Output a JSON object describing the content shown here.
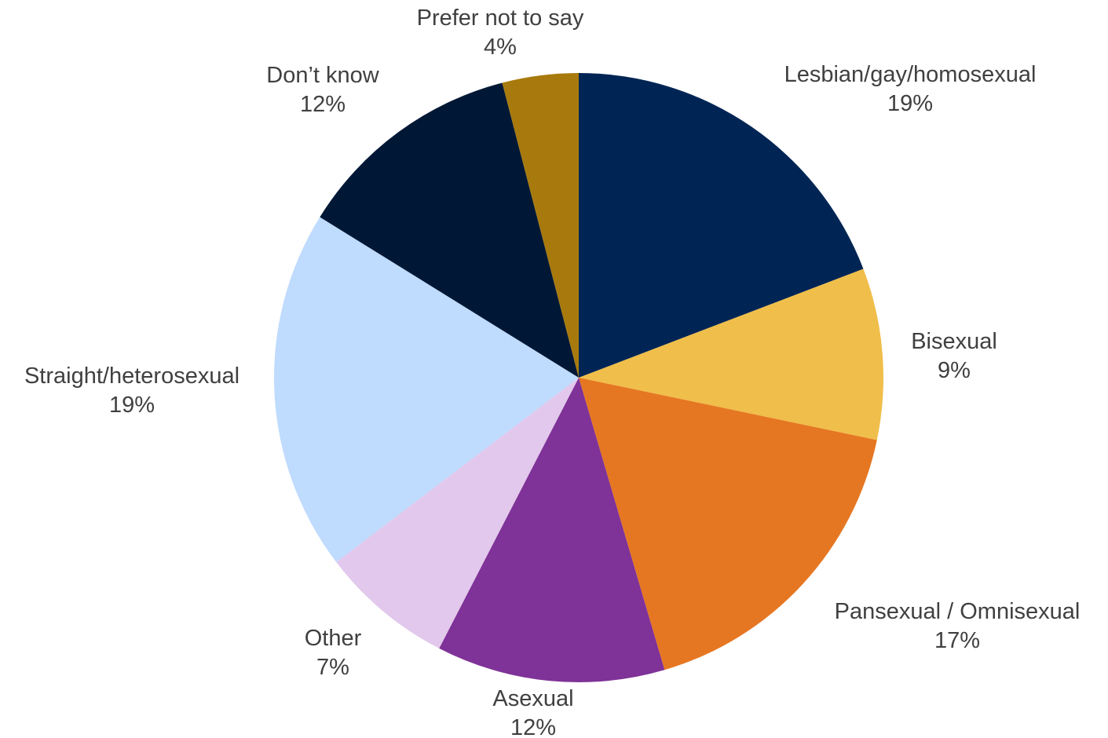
{
  "chart_data": {
    "type": "pie",
    "title": "",
    "start_angle_deg": 0,
    "direction": "clockwise",
    "slices": [
      {
        "label": "Lesbian/gay/homosexual",
        "value": 19,
        "display": "19%",
        "color": "#002554"
      },
      {
        "label": "Bisexual",
        "value": 9,
        "display": "9%",
        "color": "#F0BE4A"
      },
      {
        "label": "Pansexual / Omnisexual",
        "value": 17,
        "display": "17%",
        "color": "#E67722"
      },
      {
        "label": "Asexual",
        "value": 12,
        "display": "12%",
        "color": "#7F3297"
      },
      {
        "label": "Other",
        "value": 7,
        "display": "7%",
        "color": "#E2C8EC"
      },
      {
        "label": "Straight/heterosexual",
        "value": 19,
        "display": "19%",
        "color": "#BFDBFE"
      },
      {
        "label": "Don’t know",
        "value": 12,
        "display": "12%",
        "color": "#001835"
      },
      {
        "label": "Prefer not to say",
        "value": 4,
        "display": "4%",
        "color": "#A87A0D"
      }
    ]
  }
}
